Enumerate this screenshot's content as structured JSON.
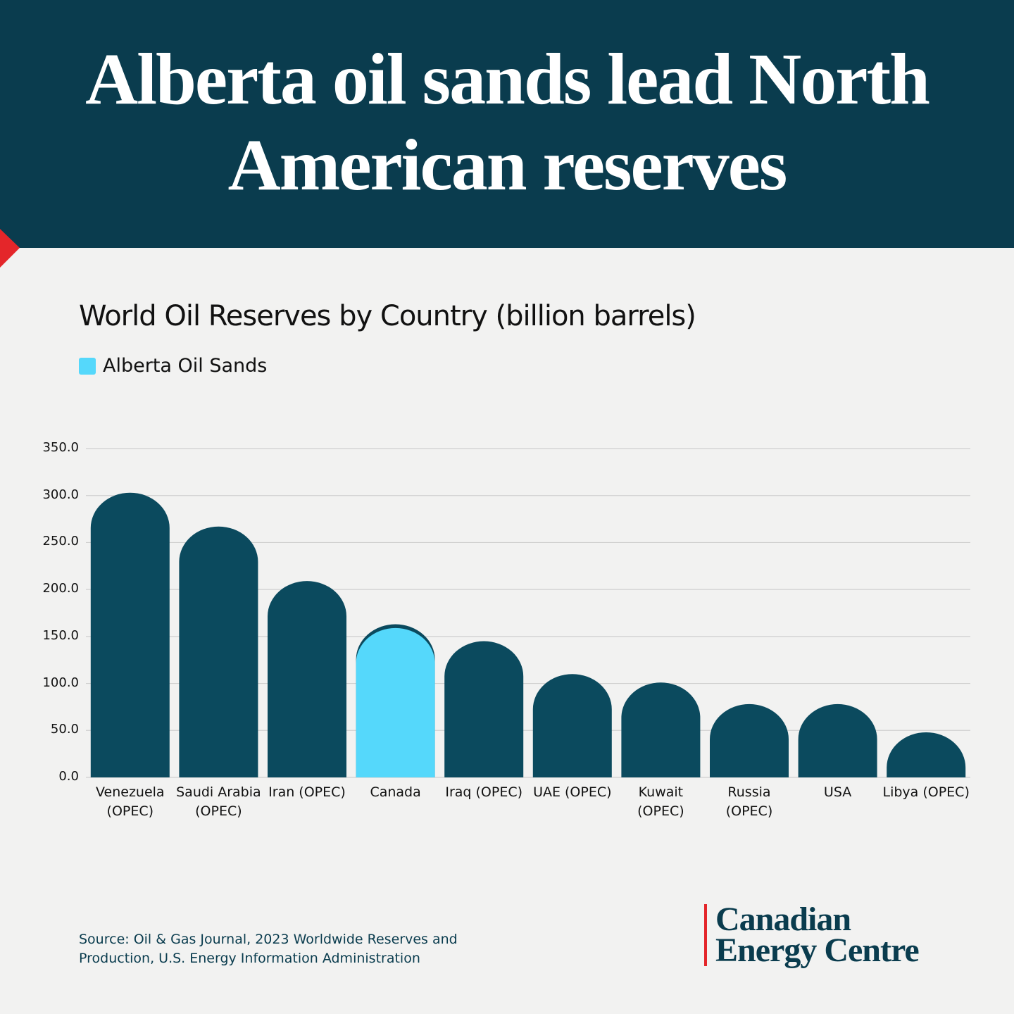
{
  "title": "Alberta oil sands lead North American reserves",
  "chart_data": {
    "type": "bar",
    "title": "World Oil Reserves by Country (billion barrels)",
    "categories": [
      "Venezuela (OPEC)",
      "Saudi Arabia (OPEC)",
      "Iran (OPEC)",
      "Canada",
      "Iraq (OPEC)",
      "UAE (OPEC)",
      "Kuwait (OPEC)",
      "Russia (OPEC)",
      "USA",
      "Libya (OPEC)"
    ],
    "series": [
      {
        "color": "#0b4a5e",
        "values": [
          303,
          267,
          209,
          163,
          145,
          110,
          101,
          78,
          78,
          48
        ]
      },
      {
        "name": "Alberta Oil Sands",
        "color": "#55d8fb",
        "values": [
          null,
          null,
          null,
          159,
          null,
          null,
          null,
          null,
          null,
          null
        ]
      }
    ],
    "ylim": [
      0,
      350
    ],
    "yticks": [
      {
        "value": 0,
        "label": "0.0"
      },
      {
        "value": 50,
        "label": "50.0"
      },
      {
        "value": 100,
        "label": "100.0"
      },
      {
        "value": 150,
        "label": "150.0"
      },
      {
        "value": 200,
        "label": "200.0"
      },
      {
        "value": 250,
        "label": "250.0"
      },
      {
        "value": 300,
        "label": "300.0"
      },
      {
        "value": 350,
        "label": "350.0"
      }
    ],
    "grid": true
  },
  "source": "Source: Oil & Gas Journal, 2023 Worldwide Reserves and Production, U.S. Energy Information Administration",
  "brand": "Canadian Energy Centre"
}
